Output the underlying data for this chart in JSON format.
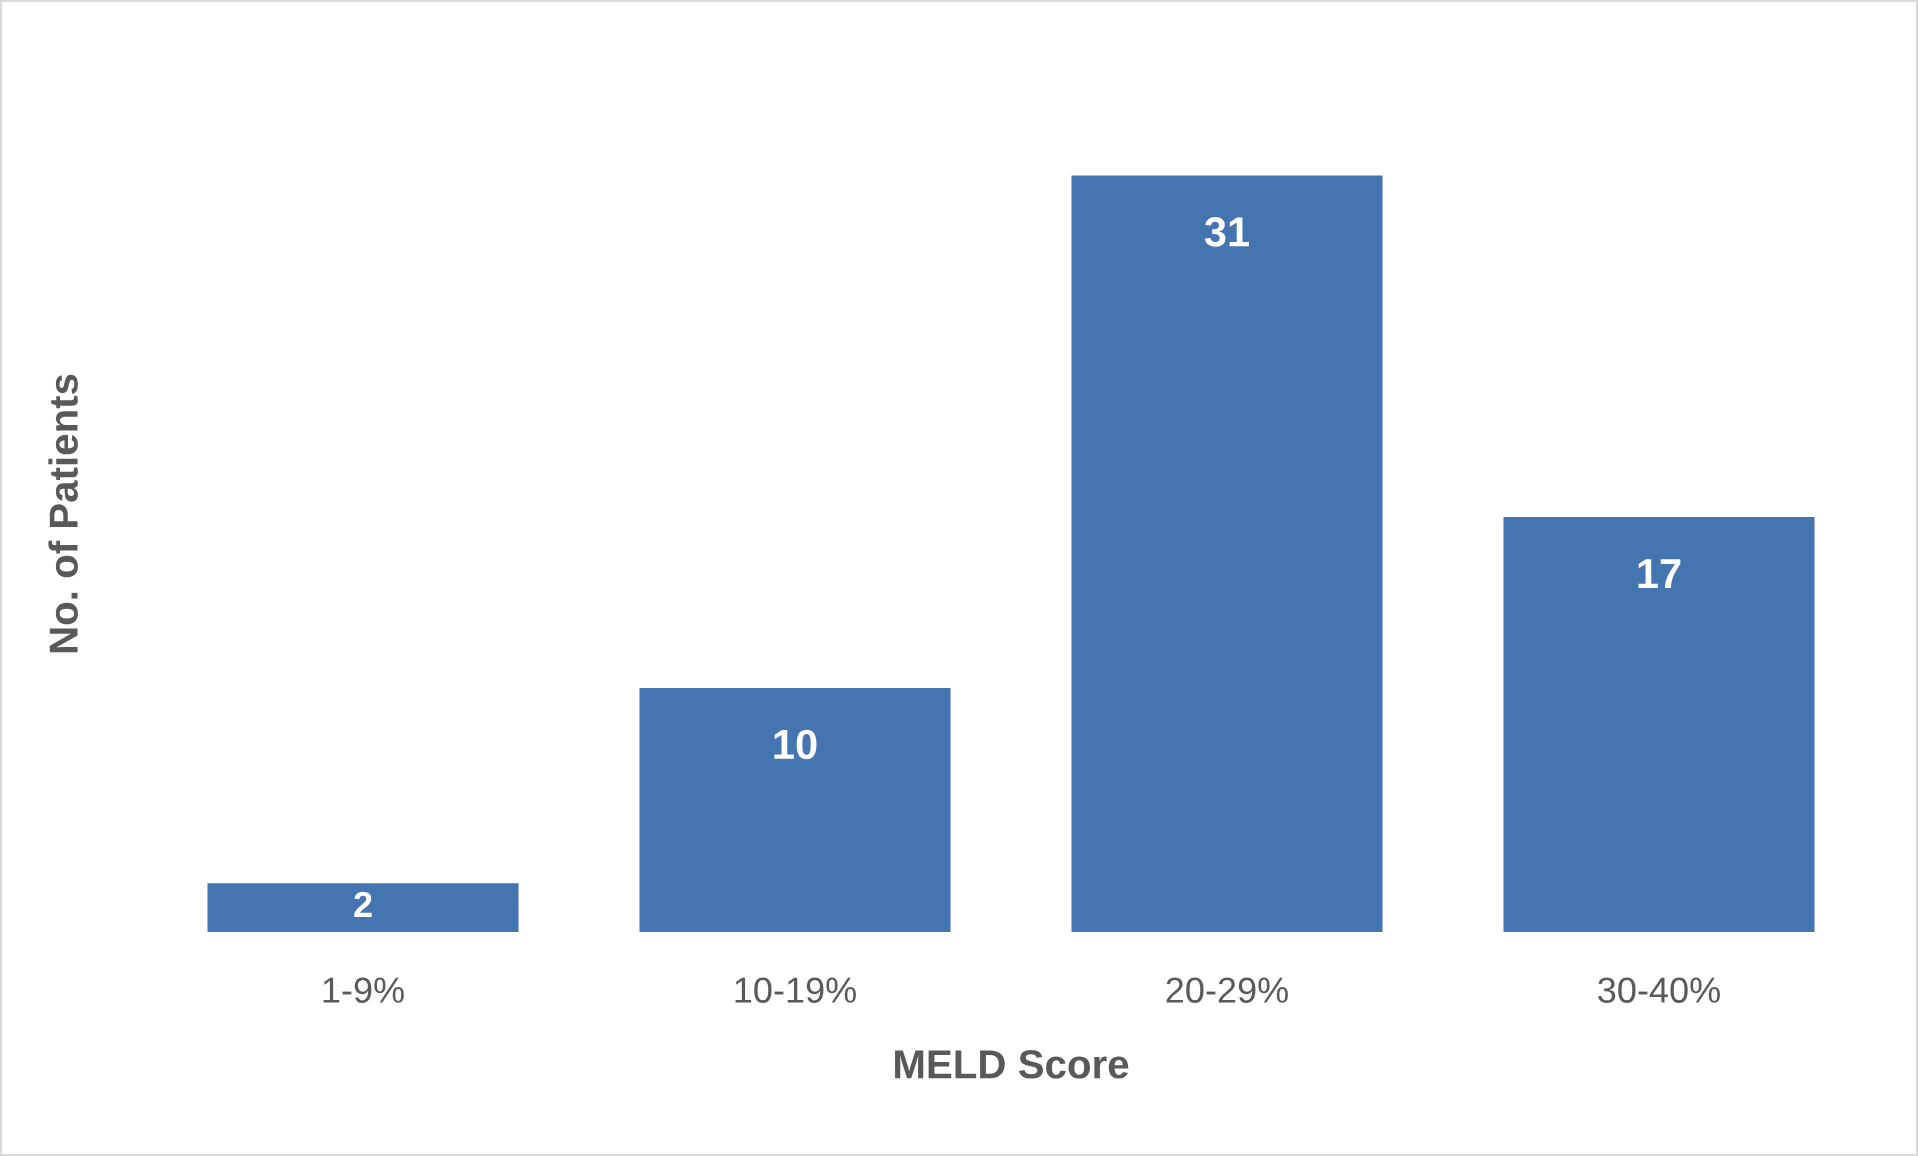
{
  "chart_data": {
    "type": "bar",
    "categories": [
      "1-9%",
      "10-19%",
      "20-29%",
      "30-40%"
    ],
    "values": [
      2,
      10,
      31,
      17
    ],
    "color": "#4575b0",
    "xlabel": "MELD Score",
    "ylabel": "No. of Patients",
    "data_labels": true,
    "tick_labels": "x",
    "grid": false,
    "legend": false
  }
}
